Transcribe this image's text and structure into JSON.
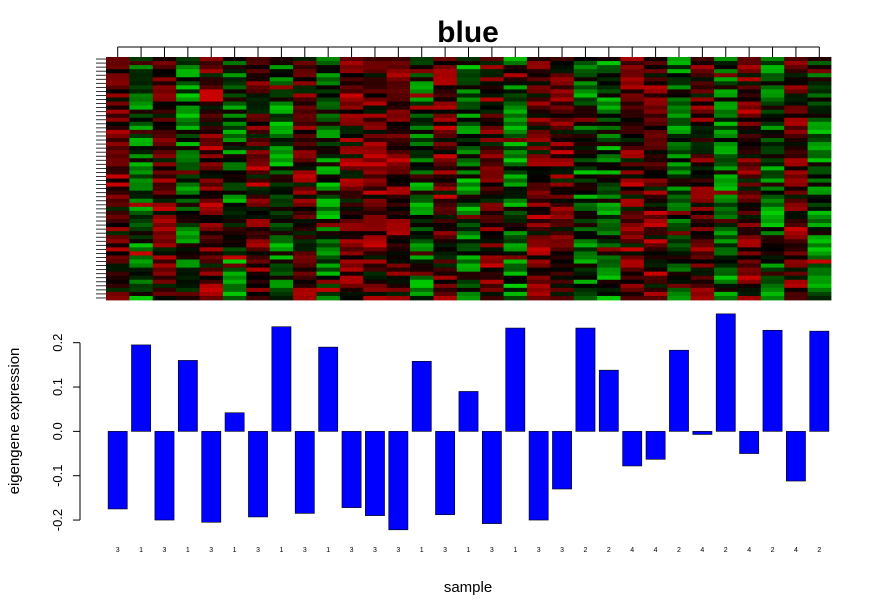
{
  "chart_data": [
    {
      "type": "heatmap",
      "title": "blue",
      "colors": {
        "low": "#00ff00",
        "mid": "#000000",
        "high": "#ff0000"
      },
      "n_samples": 31,
      "n_genes": 60
    },
    {
      "type": "bar",
      "ylabel": "eigengene expression",
      "xlabel": "sample",
      "categories": [
        "3",
        "1",
        "3",
        "1",
        "3",
        "1",
        "3",
        "1",
        "3",
        "1",
        "3",
        "3",
        "3",
        "1",
        "3",
        "1",
        "3",
        "1",
        "3",
        "3",
        "2",
        "2",
        "4",
        "4",
        "2",
        "4",
        "2",
        "4",
        "2",
        "4",
        "2"
      ],
      "values": [
        -0.175,
        0.195,
        -0.2,
        0.16,
        -0.205,
        0.042,
        -0.193,
        0.236,
        -0.185,
        0.19,
        -0.172,
        -0.19,
        -0.222,
        0.158,
        -0.188,
        0.09,
        -0.208,
        0.233,
        -0.2,
        -0.13,
        0.233,
        0.138,
        -0.078,
        -0.063,
        0.183,
        -0.007,
        0.265,
        -0.05,
        0.228,
        -0.112,
        0.226
      ],
      "ylim": [
        -0.245,
        0.285
      ],
      "yticks": [
        "-0.2",
        "-0.1",
        "0.0",
        "0.1",
        "0.2"
      ],
      "bar_color": "#0000ff"
    }
  ]
}
